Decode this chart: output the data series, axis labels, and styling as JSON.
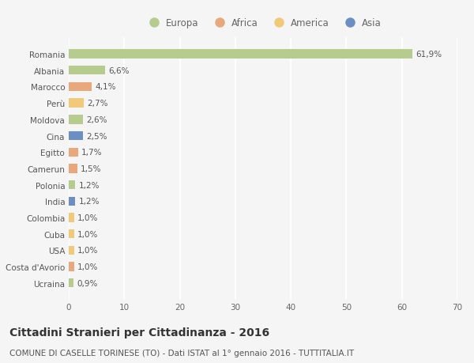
{
  "countries": [
    "Romania",
    "Albania",
    "Marocco",
    "Perù",
    "Moldova",
    "Cina",
    "Egitto",
    "Camerun",
    "Polonia",
    "India",
    "Colombia",
    "Cuba",
    "USA",
    "Costa d'Avorio",
    "Ucraina"
  ],
  "values": [
    61.9,
    6.6,
    4.1,
    2.7,
    2.6,
    2.5,
    1.7,
    1.5,
    1.2,
    1.2,
    1.0,
    1.0,
    1.0,
    1.0,
    0.9
  ],
  "labels": [
    "61,9%",
    "6,6%",
    "4,1%",
    "2,7%",
    "2,6%",
    "2,5%",
    "1,7%",
    "1,5%",
    "1,2%",
    "1,2%",
    "1,0%",
    "1,0%",
    "1,0%",
    "1,0%",
    "0,9%"
  ],
  "regions": [
    "Europa",
    "Europa",
    "Africa",
    "America",
    "Europa",
    "Asia",
    "Africa",
    "Africa",
    "Europa",
    "Asia",
    "America",
    "America",
    "America",
    "Africa",
    "Europa"
  ],
  "region_colors": {
    "Europa": "#b5cc8e",
    "Africa": "#e8a87c",
    "America": "#f0c97a",
    "Asia": "#6b8fc2"
  },
  "title": "Cittadini Stranieri per Cittadinanza - 2016",
  "subtitle": "COMUNE DI CASELLE TORINESE (TO) - Dati ISTAT al 1° gennaio 2016 - TUTTITALIA.IT",
  "xlim": [
    0,
    70
  ],
  "xticks": [
    0,
    10,
    20,
    30,
    40,
    50,
    60,
    70
  ],
  "background_color": "#f5f5f5",
  "grid_color": "#ffffff",
  "bar_height": 0.55,
  "title_fontsize": 10,
  "subtitle_fontsize": 7.5,
  "label_fontsize": 7.5,
  "tick_fontsize": 7.5,
  "legend_fontsize": 8.5
}
